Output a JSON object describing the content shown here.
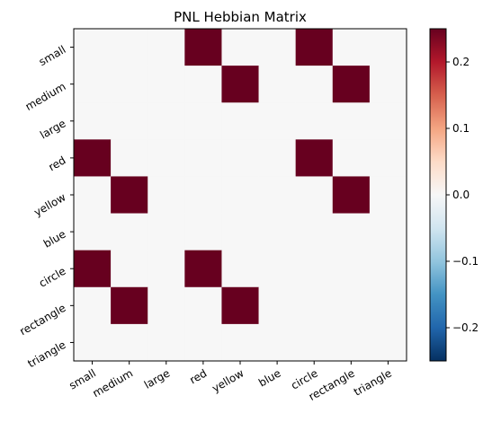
{
  "chart_data": {
    "type": "heatmap",
    "title": "PNL Hebbian Matrix",
    "rows": [
      "small",
      "medium",
      "large",
      "red",
      "yellow",
      "blue",
      "circle",
      "rectangle",
      "triangle"
    ],
    "columns": [
      "small",
      "medium",
      "large",
      "red",
      "yellow",
      "blue",
      "circle",
      "rectangle",
      "triangle"
    ],
    "values": [
      [
        0,
        0,
        0,
        0.25,
        0,
        0,
        0.25,
        0,
        0
      ],
      [
        0,
        0,
        0,
        0,
        0.25,
        0,
        0,
        0.25,
        0
      ],
      [
        0,
        0,
        0,
        0,
        0,
        0,
        0,
        0,
        0
      ],
      [
        0.25,
        0,
        0,
        0,
        0,
        0,
        0.25,
        0,
        0
      ],
      [
        0,
        0.25,
        0,
        0,
        0,
        0,
        0,
        0.25,
        0
      ],
      [
        0,
        0,
        0,
        0,
        0,
        0,
        0,
        0,
        0
      ],
      [
        0.25,
        0,
        0,
        0.25,
        0,
        0,
        0,
        0,
        0
      ],
      [
        0,
        0.25,
        0,
        0,
        0.25,
        0,
        0,
        0,
        0
      ],
      [
        0,
        0,
        0,
        0,
        0,
        0,
        0,
        0,
        0
      ]
    ],
    "colormap": "RdBu_r",
    "vmin": -0.25,
    "vmax": 0.25,
    "colorbar_ticks": [
      0.2,
      0.1,
      0.0,
      -0.1,
      -0.2
    ],
    "colorbar_tick_labels": [
      "0.2",
      "0.1",
      "0.0",
      "−0.1",
      "−0.2"
    ],
    "colors": {
      "high": "#67001f",
      "neutral": "#f7f7f7",
      "low": "#053061"
    }
  }
}
